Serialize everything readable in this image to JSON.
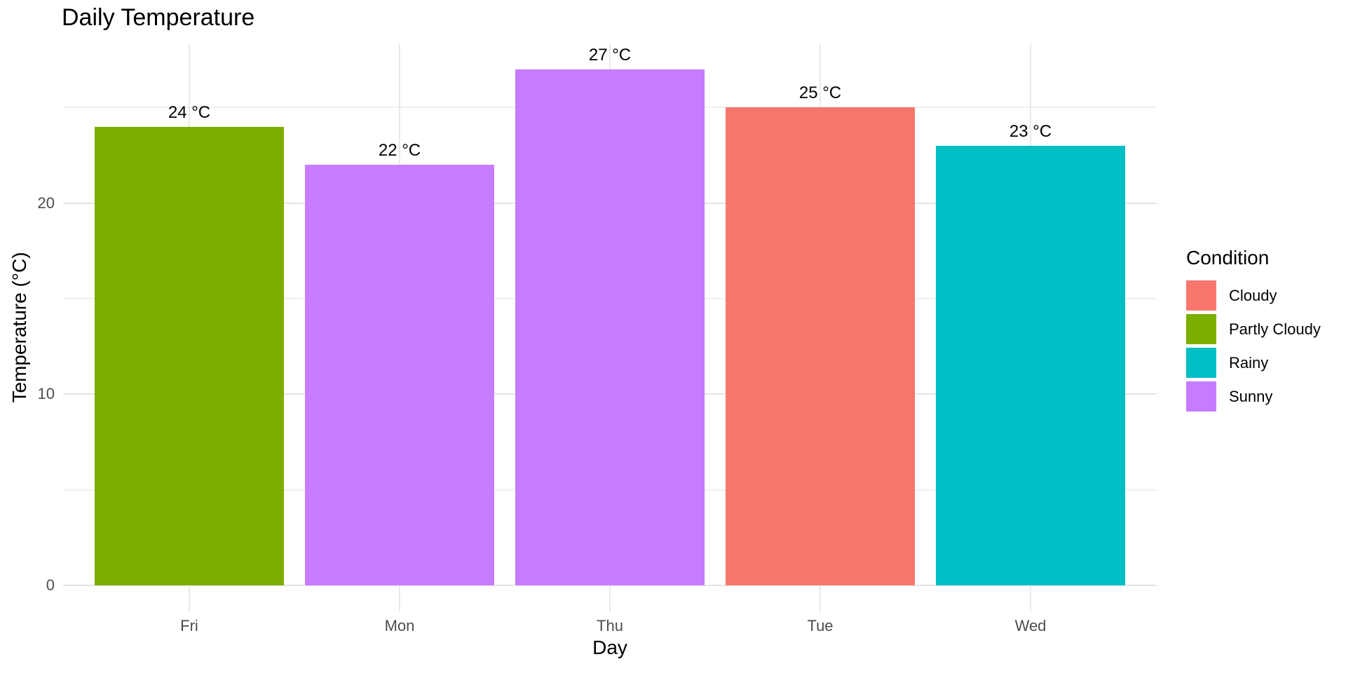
{
  "chart_data": {
    "type": "bar",
    "title": "Daily Temperature",
    "xlabel": "Day",
    "ylabel": "Temperature (°C)",
    "categories": [
      "Fri",
      "Mon",
      "Thu",
      "Tue",
      "Wed"
    ],
    "values": [
      24,
      22,
      27,
      25,
      23
    ],
    "bar_conditions": [
      "Partly Cloudy",
      "Sunny",
      "Sunny",
      "Cloudy",
      "Rainy"
    ],
    "bar_labels": [
      "24 °C",
      "22 °C",
      "27 °C",
      "25 °C",
      "23 °C"
    ],
    "ylim": [
      0,
      27
    ],
    "y_major_ticks": [
      0,
      10,
      20
    ],
    "y_minor_ticks": [
      5,
      15,
      25
    ],
    "grid": "horizontal major+minor, vertical at category centers, no axis lines, no tick marks",
    "legend_position": "right-center",
    "legend": {
      "title": "Condition",
      "entries": [
        {
          "label": "Cloudy",
          "color": "#F8766D"
        },
        {
          "label": "Partly Cloudy",
          "color": "#7CAE00"
        },
        {
          "label": "Rainy",
          "color": "#00BFC4"
        },
        {
          "label": "Sunny",
          "color": "#C77CFF"
        }
      ]
    },
    "colors": {
      "Cloudy": "#F8766D",
      "Partly Cloudy": "#7CAE00",
      "Rainy": "#00BFC4",
      "Sunny": "#C77CFF"
    },
    "tick_text_color": "#4D4D4D",
    "title_text_color": "#000000",
    "background_color": "#FFFFFF"
  }
}
